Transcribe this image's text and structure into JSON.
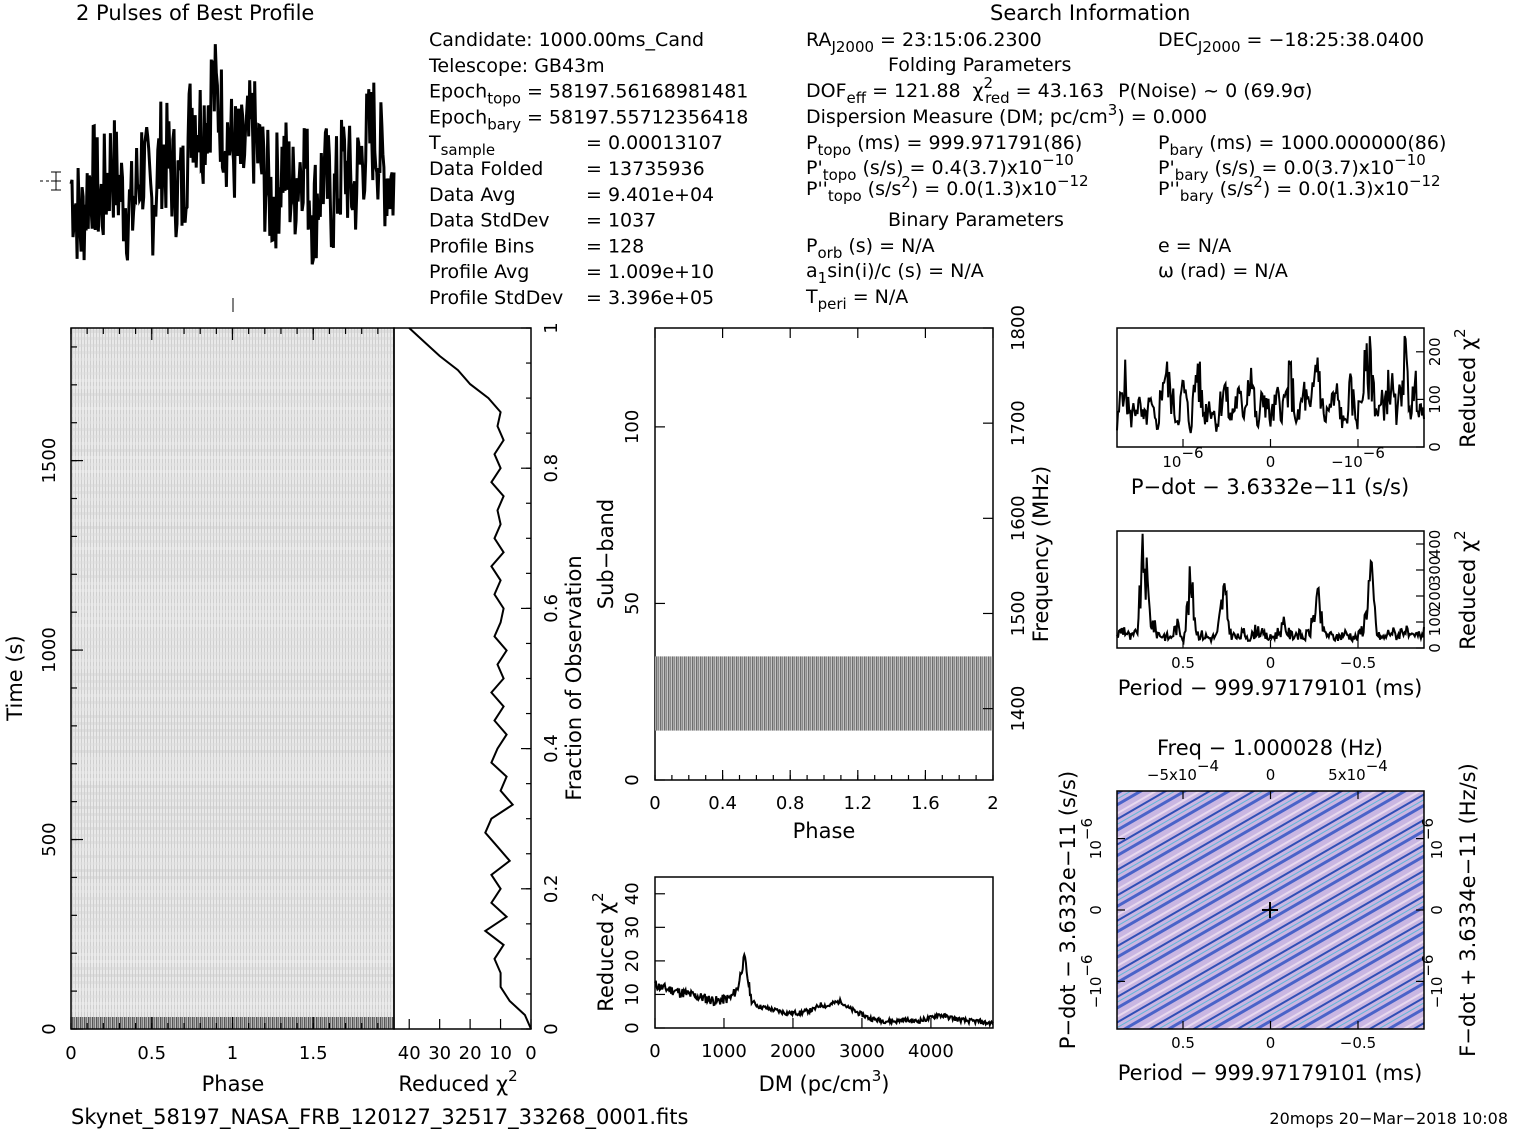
{
  "header": {
    "profile_title": "2 Pulses of Best Profile",
    "search_title": "Search Information",
    "folding_title": "Folding Parameters",
    "binary_title": "Binary Parameters"
  },
  "info_left": [
    {
      "label": "Candidate:  1000.00ms_Cand",
      "value": ""
    },
    {
      "label": "Telescope:  GB43m",
      "value": ""
    },
    {
      "label": "Epoch",
      "sub": "topo",
      "value": "= 58197.56168981481"
    },
    {
      "label": "Epoch",
      "sub": "bary",
      "value": "= 58197.55712356418"
    },
    {
      "label": "T",
      "sub": "sample",
      "value": "=   0.00013107"
    },
    {
      "label": "Data Folded",
      "value": "=   13735936"
    },
    {
      "label": "Data Avg",
      "value": "=   9.401e+04"
    },
    {
      "label": "Data StdDev",
      "value": "=   1037"
    },
    {
      "label": "Profile Bins",
      "value": "=   128"
    },
    {
      "label": "Profile Avg",
      "value": "=   1.009e+10"
    },
    {
      "label": "Profile StdDev",
      "value": "=   3.396e+05"
    }
  ],
  "info_mid": {
    "ra": "RA",
    "ra_sub": "J2000",
    "ra_val": "= 23:15:06.2300",
    "dof": "DOF",
    "dof_sub": "eff",
    "dof_val": "= 121.88",
    "chi": "χ",
    "chi_sub": "red",
    "chi_val": "= 43.163",
    "pnoise": "P(Noise) ~ 0    (69.9σ)",
    "dm": "Dispersion Measure (DM; pc/cm",
    "dm_tail": ") = 0.000",
    "ptopo": "P",
    "ptopo_sub": "topo",
    "ptopo_val": "(ms) =   999.971791(86)",
    "pdtopo": "P'",
    "pdtopo_sub": "topo",
    "pdtopo_val": "(s/s) =  0.4(3.7)x10",
    "pdtopo_exp": "−10",
    "pddtopo": "P''",
    "pddtopo_sub": "topo",
    "pddtopo_val": "(s/s",
    "pddtopo_tail": ") = 0.0(1.3)x10",
    "pddtopo_exp": "−12",
    "porb": "P",
    "porb_sub": "orb",
    "porb_val": "(s) = N/A",
    "a1": "a",
    "a1_sub": "1",
    "a1_val": "sin(i)/c (s) = N/A",
    "tperi": "T",
    "tperi_sub": "peri",
    "tperi_val": "= N/A"
  },
  "info_right": {
    "dec": "DEC",
    "dec_sub": "J2000",
    "dec_val": "= −18:25:38.0400",
    "pbary": "P",
    "pbary_sub": "bary",
    "pbary_val": "(ms) =   1000.000000(86)",
    "pdbary": "P'",
    "pdbary_sub": "bary",
    "pdbary_val": "(s/s) = 0.0(3.7)x10",
    "pdbary_exp": "−10",
    "pddbary": "P''",
    "pddbary_sub": "bary",
    "pddbary_val": "(s/s",
    "pddbary_tail": ") = 0.0(1.3)x10",
    "pddbary_exp": "−12",
    "ecc": "e = N/A",
    "omega": "ω (rad) = N/A"
  },
  "footer": {
    "filename": "Skynet_58197_NASA_FRB_120127_32517_33268_0001.fits",
    "stamp": "20mops 20−Mar−2018 10:08"
  },
  "chart_data": [
    {
      "id": "profile",
      "type": "line",
      "title": "2 Pulses of Best Profile",
      "xlim": [
        0,
        2
      ],
      "description_values_relative": true,
      "x": [
        0.0,
        0.0625,
        0.125,
        0.1875,
        0.25,
        0.3125,
        0.375,
        0.4375,
        0.5,
        0.5625,
        0.625,
        0.6875,
        0.75,
        0.8125,
        0.875,
        0.9375,
        1.0,
        1.0625,
        1.125,
        1.1875,
        1.25,
        1.3125,
        1.375,
        1.4375,
        1.5,
        1.5625,
        1.625,
        1.6875,
        1.75,
        1.8125,
        1.875,
        1.9375,
        2.0
      ],
      "values": [
        0.45,
        0.25,
        0.5,
        0.35,
        0.55,
        0.4,
        0.3,
        0.55,
        0.35,
        0.6,
        0.5,
        0.4,
        0.8,
        0.7,
        0.9,
        0.75,
        0.6,
        0.55,
        0.7,
        0.5,
        0.35,
        0.55,
        0.4,
        0.6,
        0.3,
        0.5,
        0.35,
        0.55,
        0.4,
        0.6,
        0.7,
        0.5,
        0.45
      ]
    },
    {
      "id": "time_phase",
      "type": "heatmap",
      "xlabel": "Phase",
      "ylabel": "Time (s)",
      "xlim": [
        0,
        2
      ],
      "ylim": [
        0,
        1850
      ],
      "xticks": [
        "0",
        "0.5",
        "1",
        "1.5"
      ],
      "yticks": [
        "0",
        "500",
        "1000",
        "1500"
      ]
    },
    {
      "id": "time_chi",
      "type": "line",
      "xlabel": "Reduced χ",
      "xlabel_sup": "2",
      "ylabel": "Fraction of Observation",
      "xlim": [
        45,
        0
      ],
      "ylim": [
        0,
        1
      ],
      "xticks": [
        "40",
        "30",
        "20",
        "10",
        "0"
      ],
      "yticks": [
        "0",
        "0.2",
        "0.4",
        "0.6",
        "0.8",
        "1"
      ],
      "y": [
        0.0,
        0.02,
        0.04,
        0.06,
        0.08,
        0.1,
        0.12,
        0.14,
        0.16,
        0.18,
        0.2,
        0.22,
        0.24,
        0.26,
        0.28,
        0.3,
        0.32,
        0.34,
        0.36,
        0.38,
        0.4,
        0.42,
        0.44,
        0.46,
        0.48,
        0.5,
        0.52,
        0.54,
        0.56,
        0.58,
        0.6,
        0.62,
        0.64,
        0.66,
        0.68,
        0.7,
        0.72,
        0.74,
        0.76,
        0.78,
        0.8,
        0.82,
        0.84,
        0.86,
        0.88,
        0.9,
        0.92,
        0.94,
        0.96,
        0.98,
        1.0
      ],
      "values": [
        0,
        2,
        7,
        10,
        10,
        12,
        9,
        15,
        8,
        13,
        10,
        13,
        7,
        11,
        15,
        13,
        6,
        10,
        8,
        13,
        11,
        8,
        12,
        9,
        13,
        9,
        11,
        8,
        12,
        10,
        9,
        12,
        10,
        13,
        9,
        12,
        10,
        11,
        9,
        13,
        10,
        12,
        9,
        11,
        10,
        14,
        20,
        24,
        30,
        35,
        40
      ]
    },
    {
      "id": "subband_phase",
      "type": "heatmap",
      "xlabel": "Phase",
      "ylabel": "Sub−band",
      "y2label": "Frequency (MHz)",
      "xlim": [
        0,
        2
      ],
      "ylim": [
        0,
        128
      ],
      "y2lim": [
        1325,
        1800
      ],
      "xticks": [
        "0",
        "0.4",
        "0.8",
        "1.2",
        "1.6",
        "2"
      ],
      "yticks": [
        "0",
        "50",
        "100"
      ],
      "y2ticks": [
        "1400",
        "1500",
        "1600",
        "1700",
        "1800"
      ],
      "active_band": [
        14,
        35
      ]
    },
    {
      "id": "dm_chi",
      "type": "line",
      "xlabel": "DM (pc/cm",
      "xlabel_sup": "3",
      "xlabel_tail": ")",
      "ylabel": "Reduced χ",
      "ylabel_sup": "2",
      "xlim": [
        0,
        4900
      ],
      "ylim": [
        0,
        45
      ],
      "xticks": [
        "0",
        "1000",
        "2000",
        "3000",
        "4000"
      ],
      "yticks": [
        "0",
        "10",
        "20",
        "30",
        "40"
      ],
      "x": [
        0,
        100,
        200,
        300,
        400,
        500,
        600,
        700,
        800,
        900,
        1000,
        1100,
        1200,
        1250,
        1300,
        1350,
        1400,
        1500,
        1600,
        1700,
        1800,
        1900,
        2000,
        2100,
        2200,
        2300,
        2400,
        2500,
        2600,
        2700,
        2800,
        2900,
        3000,
        3100,
        3200,
        3300,
        3400,
        3500,
        3600,
        3700,
        3800,
        3900,
        4000,
        4100,
        4200,
        4300,
        4400,
        4500,
        4600,
        4700,
        4800,
        4900
      ],
      "values": [
        13,
        12,
        11.5,
        11,
        10.5,
        10,
        9.5,
        9,
        8.5,
        8,
        8.5,
        9,
        12,
        17,
        21,
        14,
        8,
        6.5,
        6,
        5.5,
        5,
        4.5,
        4.5,
        4.5,
        5,
        5.5,
        7,
        6.5,
        7.5,
        8,
        6,
        5,
        4,
        3,
        2.5,
        2.2,
        2,
        2,
        2.5,
        2.2,
        2,
        2.5,
        3,
        4,
        3.5,
        3,
        2.5,
        2.2,
        2,
        2,
        1.5,
        1.5
      ]
    },
    {
      "id": "pdot_chi",
      "type": "line",
      "xlabel": "P−dot − 3.6332e−11 (s/s)",
      "ylabel": "Reduced χ",
      "ylabel_sup": "2",
      "ylim": [
        0,
        250
      ],
      "xticks": [
        "10",
        "0",
        "−10"
      ],
      "xtick_exp": "−6",
      "yticks": [
        "0",
        "100",
        "200"
      ],
      "values": [
        40,
        160,
        60,
        100,
        55,
        90,
        40,
        170,
        120,
        60,
        130,
        40,
        180,
        70,
        100,
        50,
        140,
        60,
        110,
        80,
        180,
        40,
        120,
        60,
        100,
        90,
        150,
        50,
        120,
        70,
        200,
        60,
        90,
        110,
        45,
        120,
        60,
        150,
        180,
        70,
        100,
        140,
        60,
        200,
        90,
        130,
        50
      ]
    },
    {
      "id": "period_chi",
      "type": "line",
      "xlabel": "Period − 999.97179101 (ms)",
      "ylabel": "Reduced χ",
      "ylabel_sup": "2",
      "ylim": [
        0,
        450
      ],
      "xticks": [
        "0.5",
        "0",
        "−0.5"
      ],
      "yticks": [
        "0",
        "100",
        "200",
        "300",
        "400"
      ],
      "values": [
        50,
        80,
        40,
        60,
        380,
        120,
        60,
        50,
        40,
        90,
        40,
        260,
        60,
        50,
        40,
        50,
        230,
        60,
        40,
        60,
        40,
        80,
        50,
        40,
        60,
        90,
        50,
        60,
        40,
        70,
        200,
        60,
        50,
        40,
        60,
        50,
        40,
        90,
        300,
        50,
        40,
        70,
        50,
        80,
        40,
        50,
        60
      ]
    },
    {
      "id": "pdot_period",
      "type": "heatmap",
      "title": "Freq − 1.000028 (Hz)",
      "xlabel": "Period − 999.97179101 (ms)",
      "ylabel": "P−dot − 3.6332e−11 (s/s)",
      "y2label": "F−dot + 3.6334e−11 (Hz/s)",
      "xticks": [
        "0.5",
        "0",
        "−0.5"
      ],
      "x2ticks": [
        "−5x10",
        "0",
        "5x10"
      ],
      "x2tick_exp": "−4",
      "yticks": [
        "10",
        "0",
        "−10"
      ],
      "y2ticks": [
        "10",
        "0",
        "−10"
      ],
      "tick_exp": "−6"
    }
  ]
}
